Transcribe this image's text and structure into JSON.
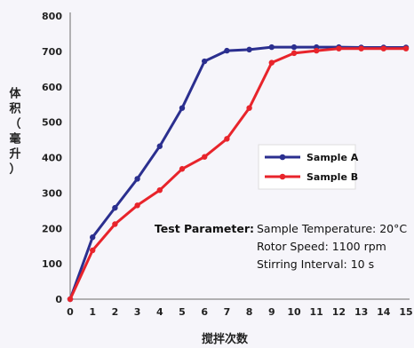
{
  "chart_data": {
    "type": "line",
    "xlabel": "搅拌次数",
    "ylabel": "体积（毫升）",
    "xlim": [
      0,
      15
    ],
    "ylim": [
      0,
      800
    ],
    "x_ticks": [
      0,
      1,
      2,
      3,
      4,
      5,
      6,
      7,
      8,
      9,
      10,
      11,
      12,
      13,
      14,
      15
    ],
    "y_ticks": [
      0,
      100,
      200,
      300,
      400,
      500,
      600,
      700,
      800
    ],
    "grid": false,
    "legend_position": "center-right",
    "series": [
      {
        "name": "Sample A",
        "color": "#2b2f8f",
        "x": [
          0,
          1,
          2,
          3,
          4,
          5,
          6,
          7,
          8,
          9,
          10,
          11,
          12,
          13,
          14,
          15
        ],
        "y": [
          0,
          175,
          258,
          340,
          432,
          540,
          672,
          702,
          705,
          712,
          712,
          712,
          712,
          711,
          711,
          711
        ]
      },
      {
        "name": "Sample B",
        "color": "#e8242b",
        "x": [
          0,
          1,
          2,
          3,
          4,
          5,
          6,
          7,
          8,
          9,
          10,
          11,
          12,
          13,
          14,
          15
        ],
        "y": [
          0,
          138,
          212,
          265,
          308,
          368,
          402,
          453,
          540,
          668,
          695,
          702,
          708,
          708,
          708,
          708
        ]
      }
    ],
    "annotation": {
      "label": "Test Parameter:",
      "lines": [
        "Sample Temperature: 20°C",
        "Rotor Speed: 1100 rpm",
        "Stirring Interval: 10 s"
      ]
    }
  }
}
